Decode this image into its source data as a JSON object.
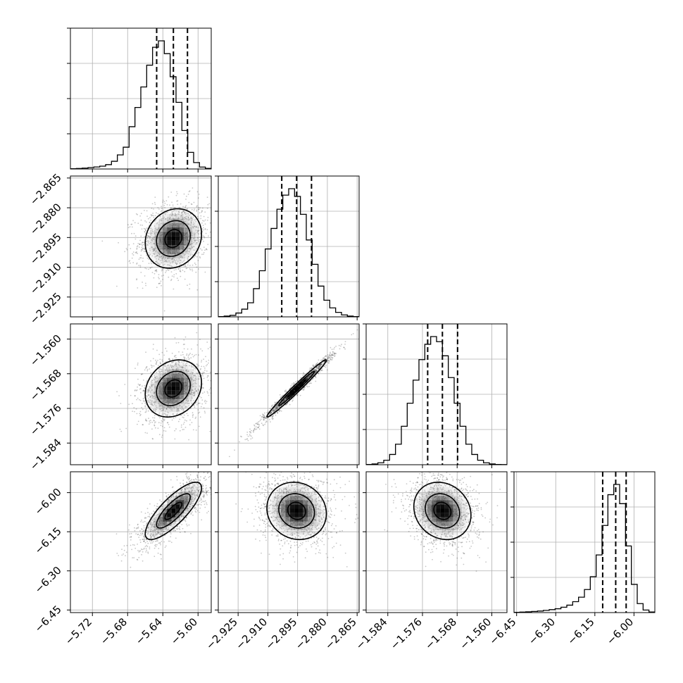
{
  "chart_data": {
    "type": "corner",
    "params": [
      {
        "mean": -5.628,
        "sd": 0.016,
        "skew": "left",
        "range": [
          -5.745,
          -5.585
        ],
        "ticks": [
          -5.72,
          -5.68,
          -5.64,
          -5.6
        ],
        "tick_labels": [
          "−5.72",
          "−5.68",
          "−5.64",
          "−5.60"
        ],
        "quantiles": [
          -5.647,
          -5.628,
          -5.612
        ],
        "hist": [
          0.002,
          0.004,
          0.007,
          0.011,
          0.016,
          0.022,
          0.034,
          0.06,
          0.11,
          0.17,
          0.33,
          0.48,
          0.64,
          0.81,
          0.95,
          1.0,
          0.9,
          0.72,
          0.52,
          0.3,
          0.13,
          0.05,
          0.015,
          0.005
        ]
      },
      {
        "mean": -2.8955,
        "sd": 0.0075,
        "range": [
          -2.935,
          -2.864
        ],
        "ticks": [
          -2.925,
          -2.91,
          -2.895,
          -2.88,
          -2.865
        ],
        "tick_labels": [
          "−2.925",
          "−2.910",
          "−2.895",
          "−2.880",
          "−2.865"
        ],
        "quantiles": [
          -2.903,
          -2.8955,
          -2.888
        ],
        "hist": [
          0.002,
          0.006,
          0.012,
          0.03,
          0.06,
          0.11,
          0.22,
          0.36,
          0.53,
          0.69,
          0.84,
          0.95,
          1.0,
          0.94,
          0.8,
          0.6,
          0.41,
          0.24,
          0.13,
          0.07,
          0.035,
          0.015,
          0.006,
          0.002
        ]
      },
      {
        "mean": -1.5714,
        "sd": 0.0033,
        "range": [
          -1.589,
          -1.5565
        ],
        "ticks": [
          -1.584,
          -1.576,
          -1.568,
          -1.56
        ],
        "tick_labels": [
          "−1.584",
          "−1.576",
          "−1.568",
          "−1.560"
        ],
        "quantiles": [
          -1.5748,
          -1.5714,
          -1.5679
        ],
        "hist": [
          0.002,
          0.006,
          0.015,
          0.035,
          0.08,
          0.16,
          0.3,
          0.48,
          0.66,
          0.82,
          0.94,
          1.0,
          0.96,
          0.85,
          0.68,
          0.48,
          0.3,
          0.16,
          0.08,
          0.035,
          0.015,
          0.006,
          0.002,
          0.001
        ]
      },
      {
        "mean": -6.07,
        "sd": 0.055,
        "skew": "left",
        "range": [
          -6.46,
          -5.92
        ],
        "ticks": [
          -6.45,
          -6.3,
          -6.15,
          -6.0
        ],
        "tick_labels": [
          "−6.45",
          "−6.30",
          "−6.15",
          "−6.00"
        ],
        "quantiles": [
          -6.12,
          -6.07,
          -6.03
        ],
        "hist": [
          0.002,
          0.004,
          0.006,
          0.009,
          0.012,
          0.017,
          0.023,
          0.03,
          0.042,
          0.058,
          0.085,
          0.12,
          0.18,
          0.28,
          0.45,
          0.68,
          0.92,
          1.0,
          0.85,
          0.52,
          0.22,
          0.07,
          0.02,
          0.005
        ]
      }
    ],
    "correlations": [
      [
        1,
        0.15,
        0.2,
        0.8
      ],
      [
        0.15,
        1,
        0.985,
        -0.1
      ],
      [
        0.2,
        0.985,
        1,
        -0.15
      ],
      [
        0.8,
        -0.1,
        -0.15,
        1
      ]
    ]
  }
}
